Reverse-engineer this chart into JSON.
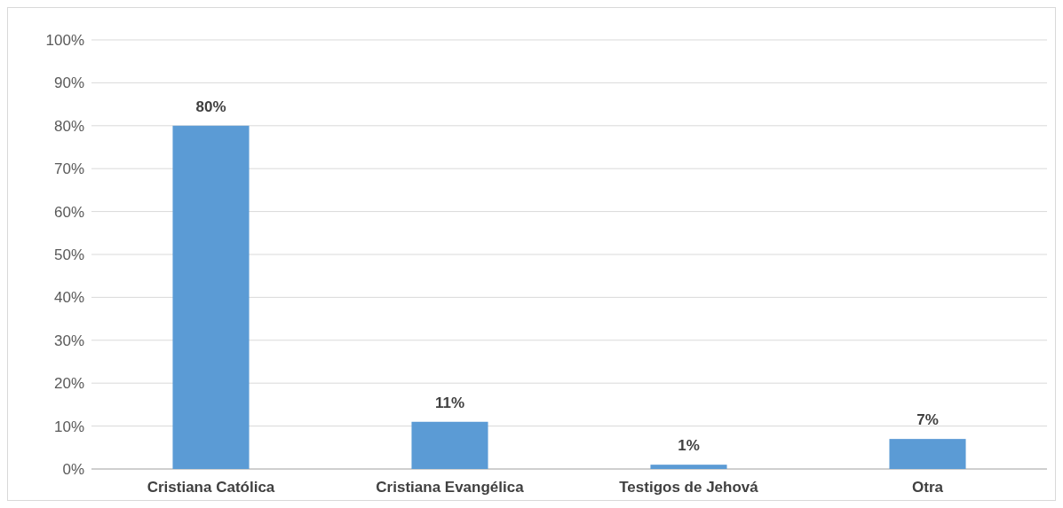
{
  "chart_data": {
    "type": "bar",
    "categories": [
      "Cristiana Católica",
      "Cristiana Evangélica",
      "Testigos de Jehová",
      "Otra"
    ],
    "values": [
      80,
      11,
      1,
      7
    ],
    "color": "#5b9bd5",
    "ylim": [
      0,
      100
    ],
    "yticks": [
      {
        "value": 0,
        "label": "0%"
      },
      {
        "value": 10,
        "label": "10%"
      },
      {
        "value": 20,
        "label": "20%"
      },
      {
        "value": 30,
        "label": "30%"
      },
      {
        "value": 40,
        "label": "40%"
      },
      {
        "value": 50,
        "label": "50%"
      },
      {
        "value": 60,
        "label": "60%"
      },
      {
        "value": 70,
        "label": "70%"
      },
      {
        "value": 80,
        "label": "80%"
      },
      {
        "value": 90,
        "label": "90%"
      },
      {
        "value": 100,
        "label": "100%"
      }
    ],
    "value_labels": [
      "80%",
      "11%",
      "1%",
      "7%"
    ],
    "grid": "y"
  }
}
